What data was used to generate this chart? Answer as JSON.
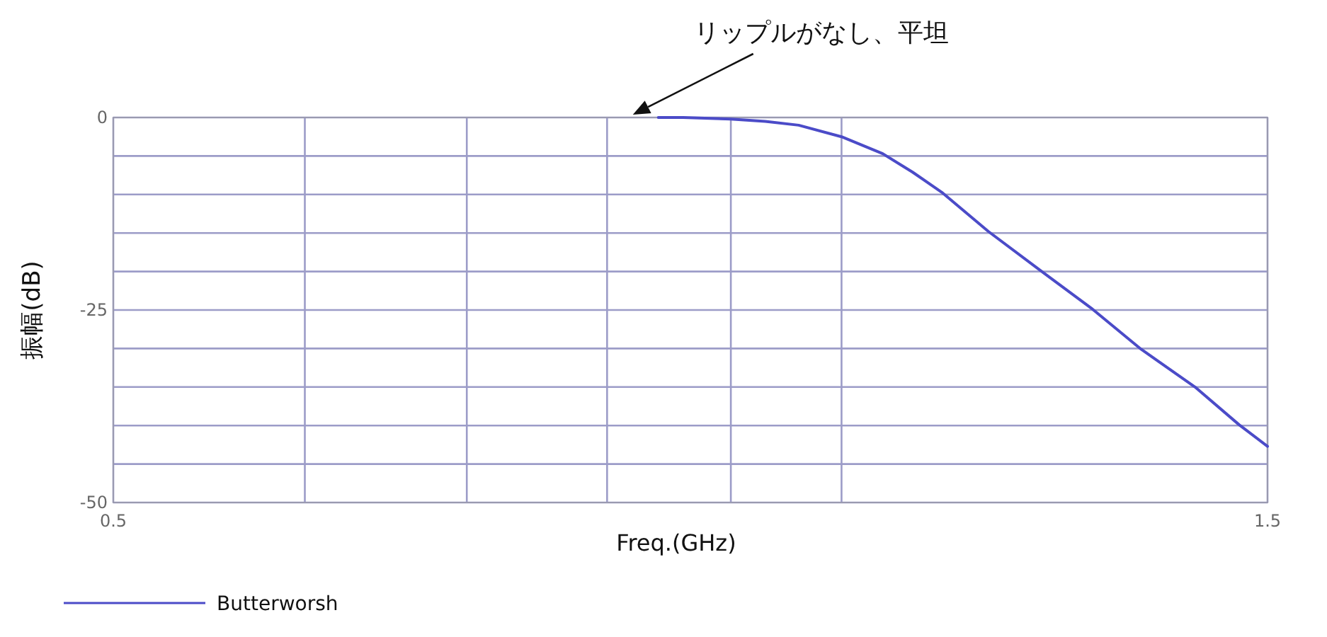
{
  "chart_data": {
    "type": "line",
    "xlabel": "Freq.(GHz)",
    "ylabel": "振幅(dB)",
    "annotations": [
      "リップルがなし、平坦"
    ],
    "x": [
      0.84,
      0.86,
      0.9,
      0.93,
      0.96,
      1.0,
      1.04,
      1.07,
      1.1,
      1.15,
      1.21,
      1.27,
      1.33,
      1.4,
      1.46,
      1.5
    ],
    "series": [
      {
        "name": "Butterworsh",
        "color": "#4b4bc8",
        "values": [
          0,
          0,
          -0.2,
          -0.5,
          -1,
          -2.5,
          -4.7,
          -7.1,
          -9.7,
          -14.8,
          -20,
          -24.9,
          -30.1,
          -35,
          -39.9,
          -42.7
        ]
      }
    ],
    "xlim": [
      0.5,
      1.5
    ],
    "xticks": [
      {
        "value": 0.5,
        "label": "0.5"
      },
      {
        "value": 0.6,
        "label": null
      },
      {
        "value": 0.7,
        "label": null
      },
      {
        "value": 0.8,
        "label": null
      },
      {
        "value": 0.9,
        "label": null
      },
      {
        "value": 1.0,
        "label": null
      },
      {
        "value": 1.5,
        "label": "1.5"
      }
    ],
    "ylim": [
      -50,
      0
    ],
    "yticks": [
      -50,
      {
        "value": -45,
        "label": null
      },
      {
        "value": -40,
        "label": null
      },
      {
        "value": -35,
        "label": null
      },
      {
        "value": -30,
        "label": null
      },
      -25,
      {
        "value": -20,
        "label": null
      },
      {
        "value": -15,
        "label": null
      },
      {
        "value": -10,
        "label": null
      },
      {
        "value": -5,
        "label": null
      },
      0
    ],
    "log": "x",
    "grid": true,
    "legend": "bottom left"
  }
}
